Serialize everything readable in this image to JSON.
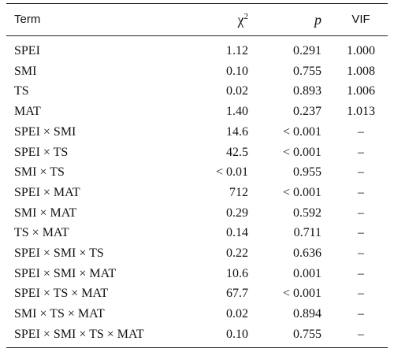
{
  "table": {
    "header": [
      "Term",
      {
        "base": "χ",
        "sup": "2"
      },
      "p",
      "VIF"
    ],
    "rows": [
      [
        "SPEI",
        "1.12",
        "0.291",
        "1.000"
      ],
      [
        "SMI",
        "0.10",
        "0.755",
        "1.008"
      ],
      [
        "TS",
        "0.02",
        "0.893",
        "1.006"
      ],
      [
        "MAT",
        "1.40",
        "0.237",
        "1.013"
      ],
      [
        "SPEI × SMI",
        "14.6",
        "< 0.001",
        "–"
      ],
      [
        "SPEI × TS",
        "42.5",
        "< 0.001",
        "–"
      ],
      [
        "SMI × TS",
        "< 0.01",
        "0.955",
        "–"
      ],
      [
        "SPEI × MAT",
        "712",
        "< 0.001",
        "–"
      ],
      [
        "SMI × MAT",
        "0.29",
        "0.592",
        "–"
      ],
      [
        "TS × MAT",
        "0.14",
        "0.711",
        "–"
      ],
      [
        "SPEI × SMI × TS",
        "0.22",
        "0.636",
        "–"
      ],
      [
        "SPEI × SMI × MAT",
        "10.6",
        "0.001",
        "–"
      ],
      [
        "SPEI × TS × MAT",
        "67.7",
        "< 0.001",
        "–"
      ],
      [
        "SMI × TS × MAT",
        "0.02",
        "0.894",
        "–"
      ],
      [
        "SPEI × SMI × TS × MAT",
        "0.10",
        "0.755",
        "–"
      ]
    ]
  }
}
